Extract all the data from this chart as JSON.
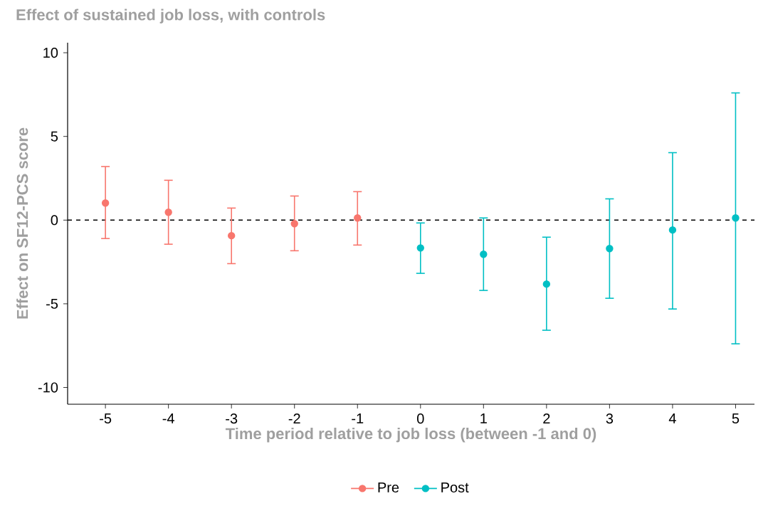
{
  "chart_data": {
    "type": "scatter",
    "title": "Effect of sustained job loss, with controls",
    "xlabel": "Time period relative to job loss (between -1 and 0)",
    "ylabel": "Effect on SF12-PCS score",
    "xlim": [
      -5.6,
      5.3
    ],
    "xticks": [
      -5,
      -4,
      -3,
      -2,
      -1,
      0,
      1,
      2,
      3,
      4,
      5
    ],
    "ylim": [
      -11,
      10.6
    ],
    "yticks": [
      -10,
      -5,
      0,
      5,
      10
    ],
    "series": [
      {
        "name": "Pre",
        "color": "#f8766d",
        "x": [
          -5,
          -4,
          -3,
          -2,
          -1
        ],
        "values": [
          1.02,
          0.47,
          -0.93,
          -0.21,
          0.13
        ],
        "errors": [
          [
            -1.1,
            3.2
          ],
          [
            -1.44,
            2.38
          ],
          [
            -2.6,
            0.72
          ],
          [
            -1.83,
            1.44
          ],
          [
            -1.49,
            1.7
          ]
        ]
      },
      {
        "name": "Post",
        "color": "#00bfc4",
        "x": [
          0,
          1,
          2,
          3,
          4,
          5
        ],
        "values": [
          -1.66,
          -2.04,
          -3.82,
          -1.7,
          -0.59,
          0.13
        ],
        "errors": [
          [
            -3.18,
            -0.17
          ],
          [
            -4.2,
            0.13
          ],
          [
            -6.58,
            -1.02
          ],
          [
            -4.67,
            1.27
          ],
          [
            -5.31,
            4.03
          ],
          [
            -7.39,
            7.6
          ]
        ]
      }
    ],
    "ref_lines": [
      {
        "axis": "y",
        "value": 0,
        "line_style": "dashed",
        "color": "#000000"
      }
    ],
    "marker": "circle",
    "grid": false,
    "legend": "bottom"
  }
}
